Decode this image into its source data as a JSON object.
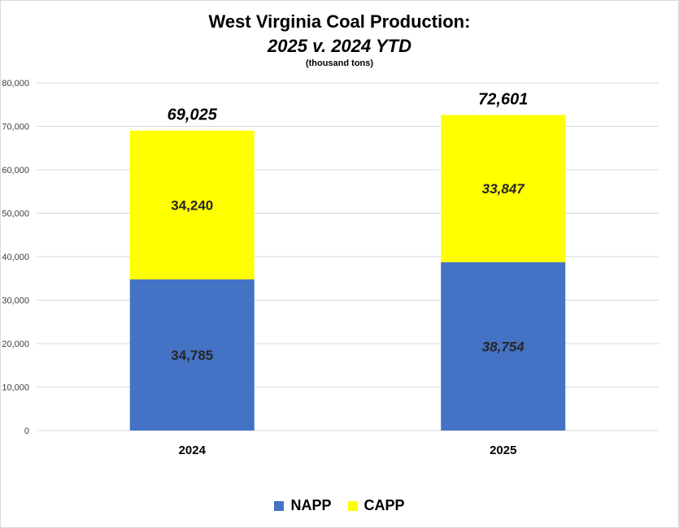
{
  "title_line1": "West Virginia Coal Production:",
  "title_line2": "2025 v. 2024 YTD",
  "subtitle": "(thousand tons)",
  "colors": {
    "napp": "#4472C4",
    "capp": "#FFFF00",
    "grid": "#d9d9d9"
  },
  "chart_data": {
    "type": "bar",
    "stacked": true,
    "categories": [
      "2024",
      "2025"
    ],
    "series": [
      {
        "name": "NAPP",
        "values": [
          34785,
          38754
        ],
        "labels": [
          "34,785",
          "38,754"
        ],
        "color": "#4472C4"
      },
      {
        "name": "CAPP",
        "values": [
          34240,
          33847
        ],
        "labels": [
          "34,240",
          "33,847"
        ],
        "color": "#FFFF00"
      }
    ],
    "totals": [
      69025,
      72601
    ],
    "total_labels": [
      "69,025",
      "72,601"
    ],
    "ylim": [
      0,
      80000
    ],
    "yticks": [
      0,
      10000,
      20000,
      30000,
      40000,
      50000,
      60000,
      70000,
      80000
    ],
    "ytick_labels": [
      "0",
      "10,000",
      "20,000",
      "30,000",
      "40,000",
      "50,000",
      "60,000",
      "70,000",
      "80,000"
    ],
    "grid": true,
    "legend_position": "bottom",
    "title": "West Virginia Coal Production: 2025 v. 2024 YTD",
    "xlabel": "",
    "ylabel": ""
  }
}
